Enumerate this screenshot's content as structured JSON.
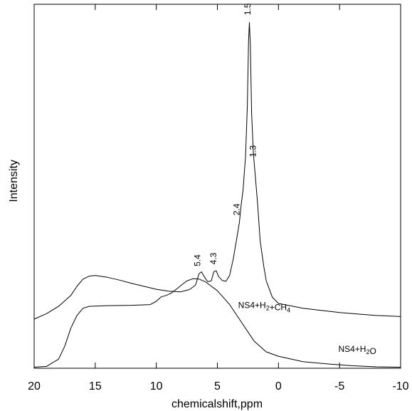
{
  "chart_data": {
    "type": "line",
    "title": "",
    "xlabel": "chemicalshift,ppm",
    "ylabel": "Intensity",
    "xlim": [
      20,
      -10
    ],
    "ylim": [
      0,
      100
    ],
    "x_reversed": true,
    "x_ticks": [
      20,
      15,
      10,
      5,
      0,
      -5,
      -10
    ],
    "x_tick_labels": [
      "20",
      "15",
      "10",
      "5",
      "0",
      "-5",
      "-10"
    ],
    "grid": false,
    "legend": "none",
    "line_color": "#000000",
    "series": [
      {
        "name_base": "NS4+H",
        "name_sub1": "2",
        "name_mid": "+CH",
        "name_sub2": "4",
        "label_x": 3.3,
        "label_y": 16.5,
        "points": [
          [
            20,
            13.5
          ],
          [
            19,
            15
          ],
          [
            18,
            17
          ],
          [
            17,
            20
          ],
          [
            16.5,
            22.5
          ],
          [
            16,
            24.5
          ],
          [
            15.5,
            25.3
          ],
          [
            15,
            25.5
          ],
          [
            14,
            25
          ],
          [
            13,
            24.2
          ],
          [
            12,
            23.3
          ],
          [
            11,
            22.5
          ],
          [
            10,
            21.7
          ],
          [
            9,
            21.2
          ],
          [
            8,
            21
          ],
          [
            7.3,
            21.6
          ],
          [
            6.8,
            22.8
          ],
          [
            6.5,
            26
          ],
          [
            6.3,
            26.5
          ],
          [
            6.1,
            25.3
          ],
          [
            5.8,
            23.8
          ],
          [
            5.5,
            24
          ],
          [
            5.3,
            26.5
          ],
          [
            5.1,
            26.8
          ],
          [
            4.9,
            25.2
          ],
          [
            4.6,
            24.1
          ],
          [
            4.3,
            23.9
          ],
          [
            4.0,
            25.5
          ],
          [
            3.7,
            30
          ],
          [
            3.4,
            36
          ],
          [
            3.2,
            40
          ],
          [
            3.05,
            45
          ],
          [
            2.9,
            49
          ],
          [
            2.7,
            58
          ],
          [
            2.55,
            72
          ],
          [
            2.45,
            90
          ],
          [
            2.38,
            95
          ],
          [
            2.3,
            89
          ],
          [
            2.2,
            70
          ],
          [
            2.05,
            59
          ],
          [
            1.9,
            53
          ],
          [
            1.7,
            45
          ],
          [
            1.5,
            35
          ],
          [
            1.2,
            28
          ],
          [
            1.0,
            24
          ],
          [
            0.5,
            19.5
          ],
          [
            0,
            17.8
          ],
          [
            -2,
            16.5
          ],
          [
            -5,
            15.3
          ],
          [
            -8,
            14.5
          ],
          [
            -10,
            14.2
          ]
        ]
      },
      {
        "name_base": "NS4+H",
        "name_sub1": "2",
        "name_mid": "O",
        "name_sub2": "",
        "label_x": -4.9,
        "label_y": 4.5,
        "points": [
          [
            20,
            0.3
          ],
          [
            19,
            0.5
          ],
          [
            18,
            2.5
          ],
          [
            17.5,
            6
          ],
          [
            17,
            11
          ],
          [
            16.5,
            14.5
          ],
          [
            16,
            16.5
          ],
          [
            15.5,
            17
          ],
          [
            14,
            17.2
          ],
          [
            12,
            17.3
          ],
          [
            10.5,
            17.5
          ],
          [
            10,
            18.4
          ],
          [
            9.6,
            19.6
          ],
          [
            9.2,
            20
          ],
          [
            8.8,
            20.6
          ],
          [
            8.4,
            21.6
          ],
          [
            8,
            22.7
          ],
          [
            7.5,
            24
          ],
          [
            7,
            24.6
          ],
          [
            6.5,
            24.5
          ],
          [
            6,
            23.8
          ],
          [
            5,
            21.3
          ],
          [
            4,
            17.5
          ],
          [
            3,
            12.5
          ],
          [
            2,
            7.5
          ],
          [
            1,
            4.5
          ],
          [
            0,
            3.3
          ],
          [
            -2,
            1.8
          ],
          [
            -4,
            1.2
          ],
          [
            -6,
            0.7
          ],
          [
            -8,
            0.4
          ],
          [
            -10,
            0.3
          ]
        ]
      }
    ],
    "annotations": [
      {
        "text": "1.5",
        "x": 2.3,
        "y": 97
      },
      {
        "text": "1.3",
        "x": 1.85,
        "y": 58
      },
      {
        "text": "2.4",
        "x": 3.2,
        "y": 42
      },
      {
        "text": "5.4",
        "x": 6.4,
        "y": 28
      },
      {
        "text": "4.3",
        "x": 5.1,
        "y": 28.5
      }
    ]
  }
}
